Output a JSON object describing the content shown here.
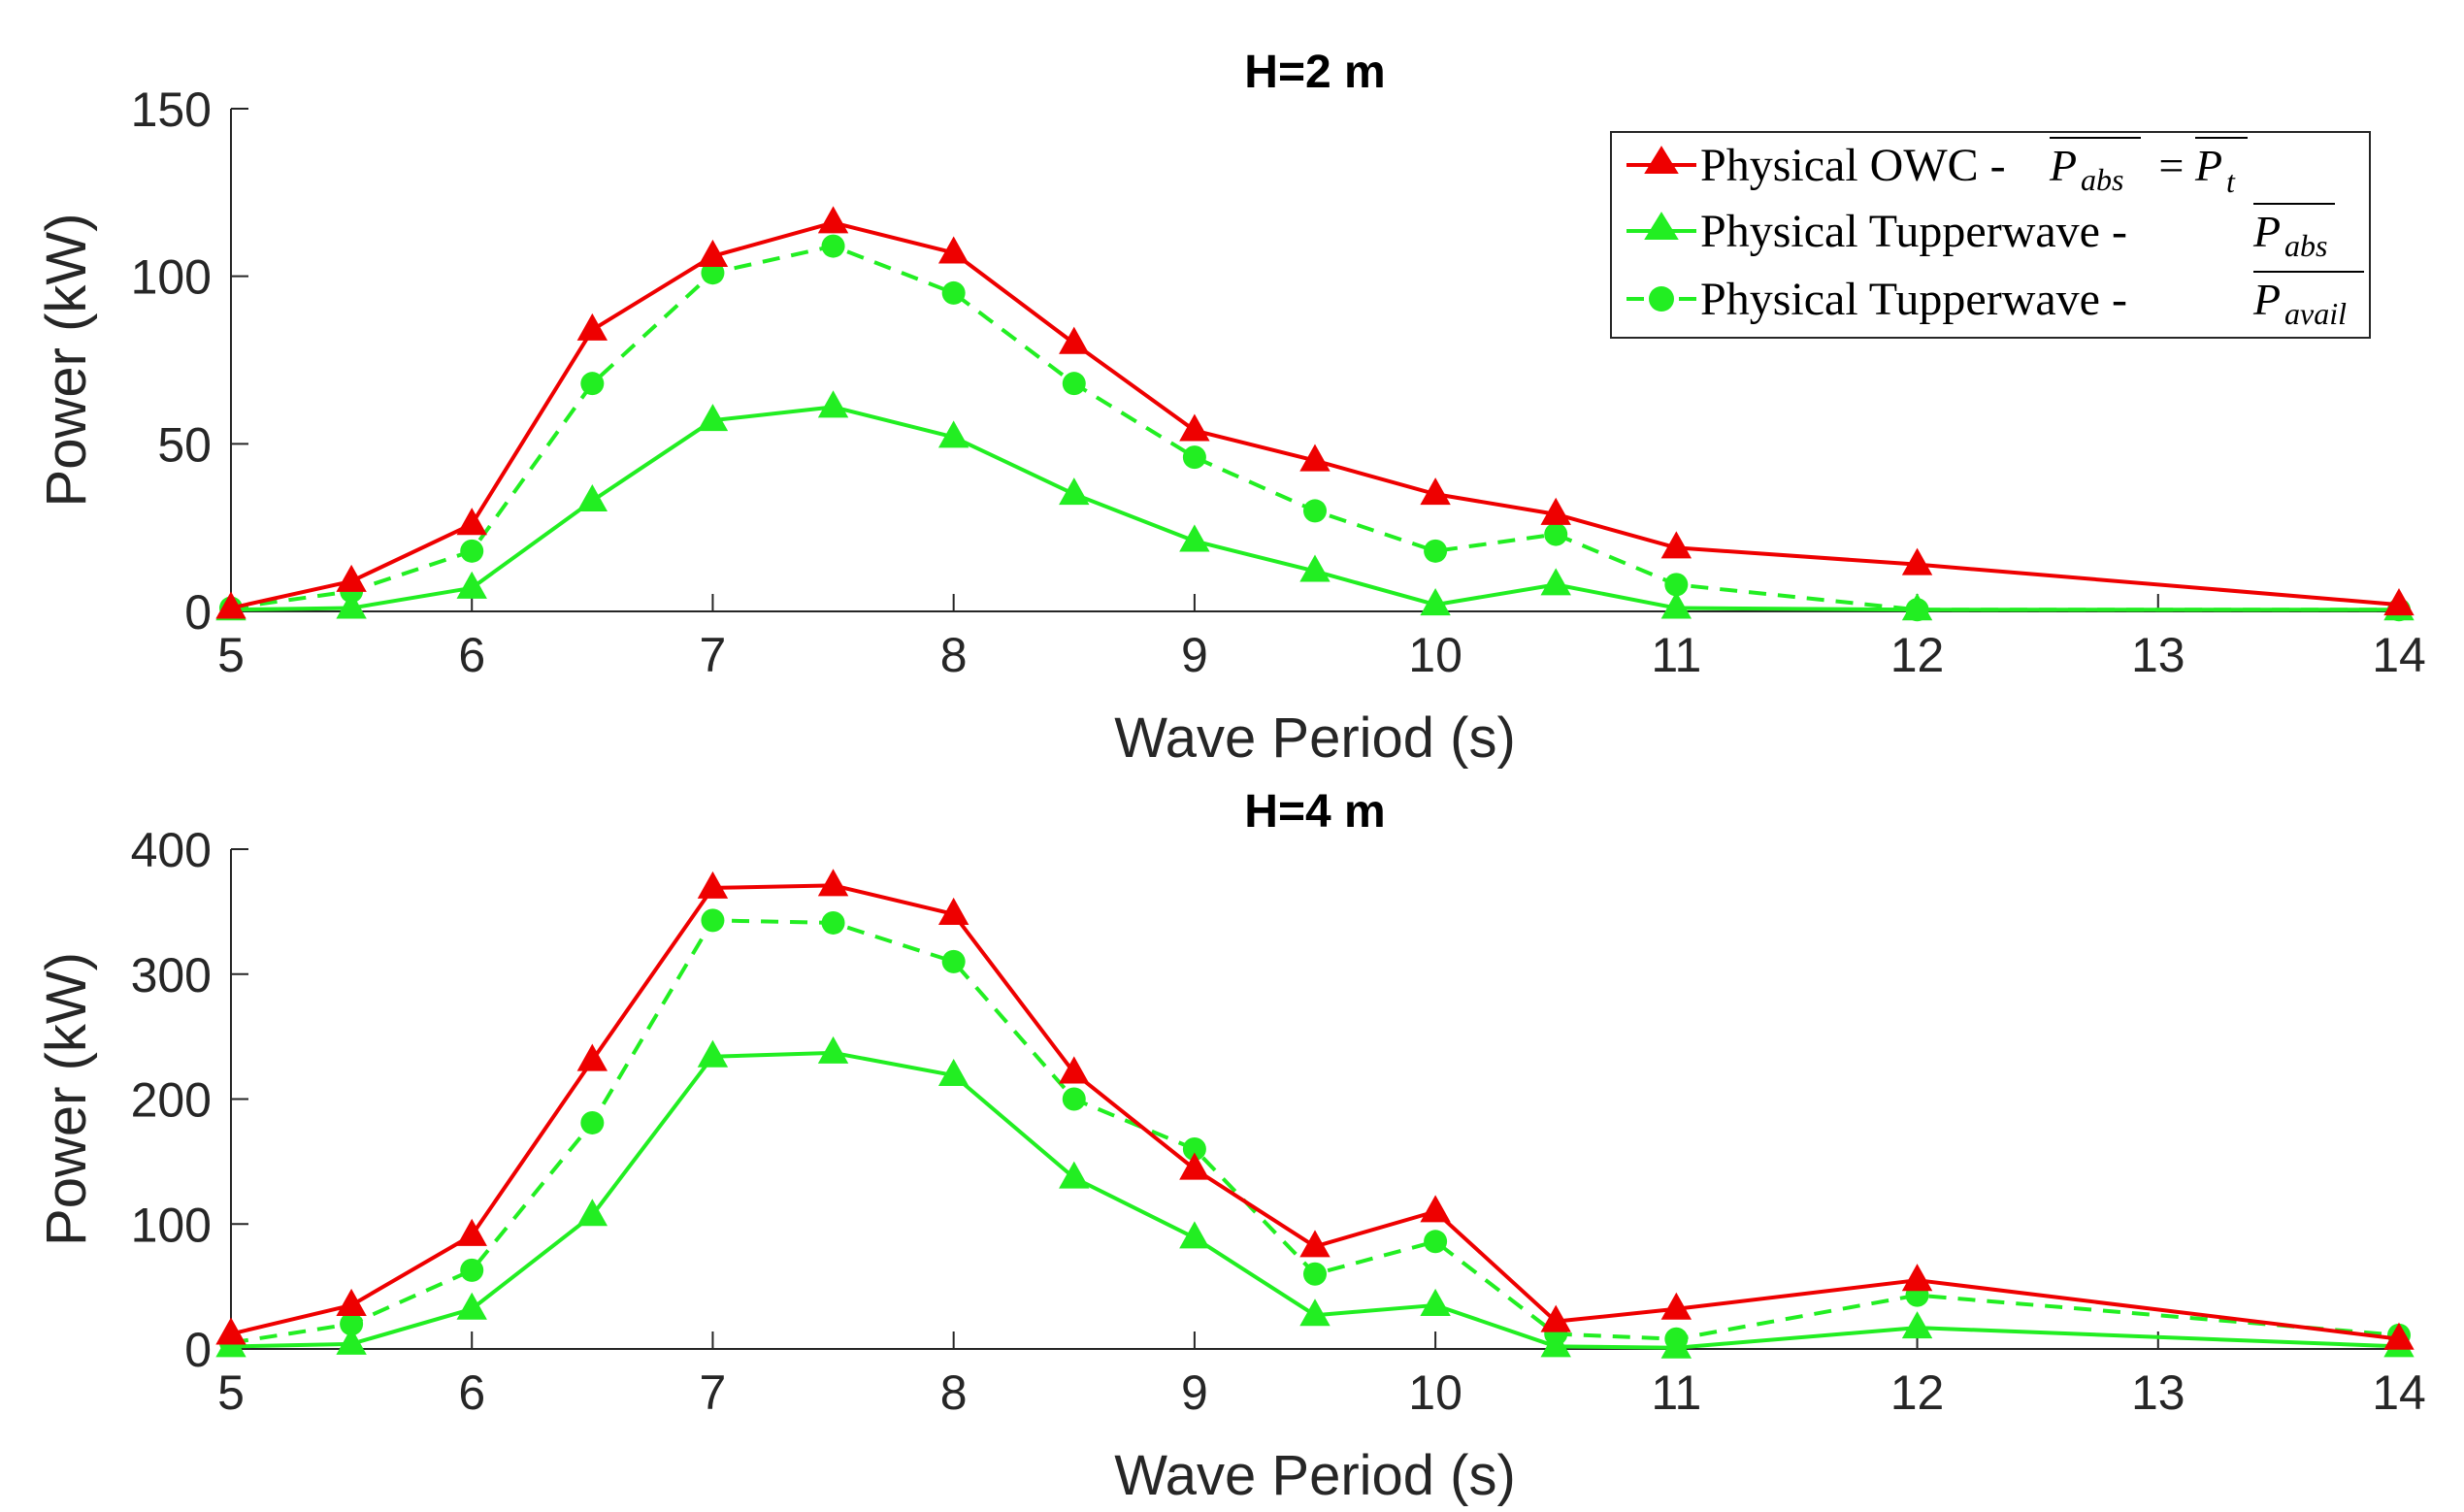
{
  "colors": {
    "owc": "#ee0000",
    "tupper": "#22ee22",
    "axis": "#262626"
  },
  "legend": {
    "items": [
      {
        "label": "Physical OWC - ",
        "math_main": "P",
        "math_sub": "abs",
        "math_eq": " = ",
        "math_main2": "P",
        "math_sub2": "t"
      },
      {
        "label": "Physical Tupperwave - ",
        "math_main": "P",
        "math_sub": "abs"
      },
      {
        "label": "Physical Tupperwave - ",
        "math_main": "P",
        "math_sub": "avail"
      }
    ]
  },
  "chart_data": [
    {
      "type": "line",
      "title": "H=2 m",
      "xlabel": "Wave Period (s)",
      "ylabel": "Power (kW)",
      "xlim": [
        5,
        14
      ],
      "ylim": [
        0,
        150
      ],
      "xticks": [
        5,
        6,
        7,
        8,
        9,
        10,
        11,
        12,
        13,
        14
      ],
      "yticks": [
        0,
        50,
        100,
        150
      ],
      "x": [
        5,
        5.5,
        6,
        6.5,
        7,
        7.5,
        8,
        8.5,
        9,
        9.5,
        10,
        10.5,
        11,
        12,
        14
      ],
      "series": [
        {
          "name": "Physical OWC - Pabs = Pt",
          "marker": "triangle",
          "style": "solid",
          "color": "#ee0000",
          "values": [
            1,
            9,
            26,
            84,
            106,
            116,
            107,
            80,
            54,
            45,
            35,
            29,
            19,
            14,
            2
          ]
        },
        {
          "name": "Physical Tupperwave - Pabs",
          "marker": "triangle",
          "style": "solid",
          "color": "#22ee22",
          "values": [
            0.5,
            1,
            7,
            33,
            57,
            61,
            52,
            35,
            21,
            12,
            2,
            8,
            1,
            0.5,
            0.5
          ]
        },
        {
          "name": "Physical Tupperwave - Pavail",
          "marker": "circle",
          "style": "dashed",
          "color": "#22ee22",
          "values": [
            1,
            6,
            18,
            68,
            101,
            109,
            95,
            68,
            46,
            30,
            18,
            23,
            8,
            0.5,
            0.5
          ]
        }
      ]
    },
    {
      "type": "line",
      "title": "H=4 m",
      "xlabel": "Wave Period (s)",
      "ylabel": "Power (kW)",
      "xlim": [
        5,
        14
      ],
      "ylim": [
        0,
        400
      ],
      "xticks": [
        5,
        6,
        7,
        8,
        9,
        10,
        11,
        12,
        13,
        14
      ],
      "yticks": [
        0,
        100,
        200,
        300,
        400
      ],
      "x": [
        5,
        5.5,
        6,
        6.5,
        7,
        7.5,
        8,
        8.5,
        9,
        9.5,
        10,
        10.5,
        11,
        12,
        14
      ],
      "series": [
        {
          "name": "Physical OWC - Pabs = Pt",
          "marker": "triangle",
          "style": "solid",
          "color": "#ee0000",
          "values": [
            12,
            35,
            91,
            231,
            369,
            371,
            348,
            221,
            144,
            82,
            110,
            22,
            32,
            55,
            8
          ]
        },
        {
          "name": "Physical Tupperwave - Pabs",
          "marker": "triangle",
          "style": "solid",
          "color": "#22ee22",
          "values": [
            2,
            4,
            32,
            107,
            234,
            237,
            219,
            137,
            89,
            27,
            35,
            2,
            1,
            17,
            2
          ]
        },
        {
          "name": "Physical Tupperwave - Pavail",
          "marker": "circle",
          "style": "dashed",
          "color": "#22ee22",
          "values": [
            5,
            20,
            63,
            181,
            343,
            341,
            310,
            200,
            160,
            60,
            86,
            12,
            8,
            43,
            11
          ]
        }
      ]
    }
  ]
}
